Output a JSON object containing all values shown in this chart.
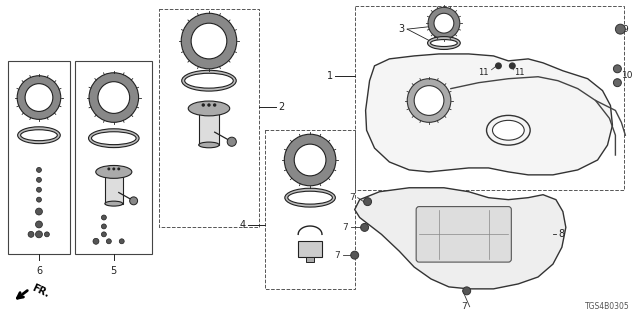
{
  "bg_color": "#ffffff",
  "diagram_code": "TGS4B0305",
  "line_color": "#222222",
  "gray_fill": "#cccccc",
  "light_gray": "#eeeeee",
  "dark_fill": "#444444"
}
